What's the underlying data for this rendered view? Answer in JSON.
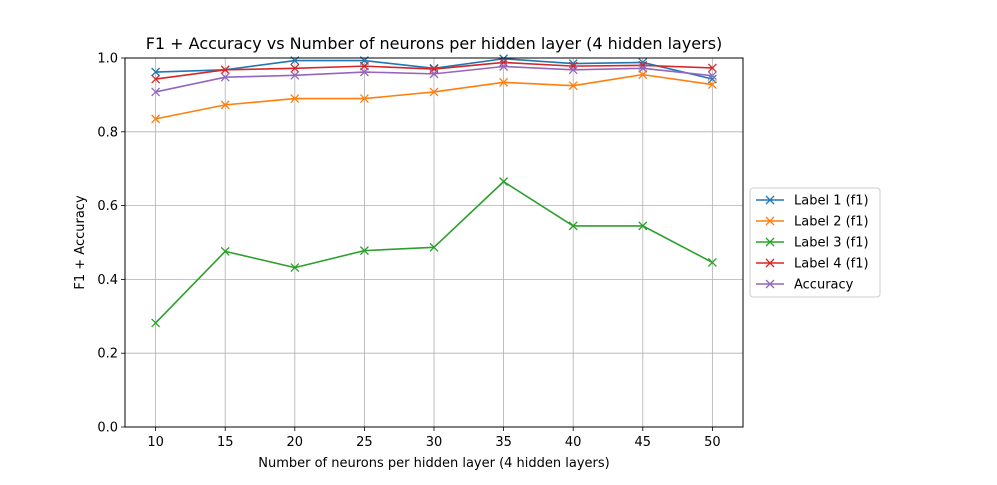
{
  "chart_data": {
    "type": "line",
    "title": "F1 + Accuracy vs Number of neurons per hidden layer (4 hidden layers)",
    "xlabel": "Number of neurons per hidden layer (4 hidden layers)",
    "ylabel": "F1 + Accuracy",
    "x": [
      10,
      15,
      20,
      25,
      30,
      35,
      40,
      45,
      50
    ],
    "xticks": [
      "10",
      "15",
      "20",
      "25",
      "30",
      "35",
      "40",
      "45",
      "50"
    ],
    "yticks": [
      "0.0",
      "0.2",
      "0.4",
      "0.6",
      "0.8",
      "1.0"
    ],
    "xlim": [
      7.8,
      52.2
    ],
    "ylim": [
      0.0,
      1.0
    ],
    "grid": true,
    "marker": "x",
    "legend_position": "center-right outside",
    "series": [
      {
        "name": "Label 1 (f1)",
        "color": "#1f77b4",
        "values": [
          0.962,
          0.968,
          0.993,
          0.993,
          0.972,
          0.998,
          0.985,
          0.988,
          0.943
        ]
      },
      {
        "name": "Label 2 (f1)",
        "color": "#ff7f0e",
        "values": [
          0.835,
          0.873,
          0.89,
          0.89,
          0.908,
          0.934,
          0.925,
          0.955,
          0.928
        ]
      },
      {
        "name": "Label 3 (f1)",
        "color": "#2ca02c",
        "values": [
          0.282,
          0.476,
          0.432,
          0.478,
          0.487,
          0.665,
          0.545,
          0.545,
          0.446
        ]
      },
      {
        "name": "Label 4 (f1)",
        "color": "#d62728",
        "values": [
          0.943,
          0.968,
          0.972,
          0.978,
          0.97,
          0.988,
          0.978,
          0.98,
          0.973
        ]
      },
      {
        "name": "Accuracy",
        "color": "#9467bd",
        "values": [
          0.908,
          0.948,
          0.953,
          0.962,
          0.957,
          0.977,
          0.968,
          0.972,
          0.952
        ]
      }
    ]
  }
}
